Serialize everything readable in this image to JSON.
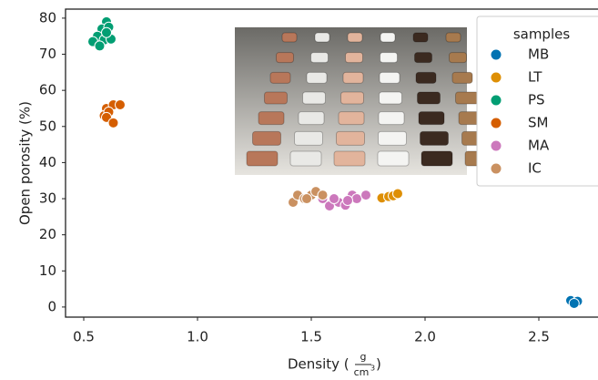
{
  "chart_data": {
    "type": "scatter",
    "xlabel": [
      "Density (",
      "g",
      "cm",
      "3",
      ")"
    ],
    "ylabel": "Open porosity (%)",
    "xlim": [
      0.42,
      2.76
    ],
    "ylim": [
      -2.8,
      82.5
    ],
    "xticks": [
      0.5,
      {
        "value": 1.0,
        "label": "1.0"
      },
      1.5,
      {
        "value": 2.0,
        "label": "2.0"
      },
      2.5
    ],
    "yticks": [
      0,
      10,
      20,
      30,
      40,
      50,
      60,
      70,
      80
    ],
    "legend_title": "samples",
    "legend": "upper right",
    "series": [
      {
        "name": "MB",
        "color": "#0173b2",
        "x": [
          2.64,
          2.67,
          2.655
        ],
        "values": [
          1.8,
          1.6,
          1.0
        ]
      },
      {
        "name": "LT",
        "color": "#de8f05",
        "x": [
          1.81,
          1.84,
          1.86,
          1.88
        ],
        "values": [
          30.2,
          30.6,
          30.8,
          31.4
        ]
      },
      {
        "name": "PS",
        "color": "#029e73",
        "x": [
          0.6,
          0.58,
          0.61,
          0.56,
          0.59,
          0.62,
          0.54,
          0.57,
          0.6
        ],
        "values": [
          79,
          77,
          77.5,
          75,
          74,
          74.2,
          73.5,
          72.3,
          76
        ]
      },
      {
        "name": "SM",
        "color": "#d55e00",
        "x": [
          0.6,
          0.63,
          0.66,
          0.59,
          0.61,
          0.6,
          0.63
        ],
        "values": [
          55,
          56,
          56,
          53,
          54,
          52.5,
          51
        ]
      },
      {
        "name": "MA",
        "color": "#cc78bc",
        "x": [
          1.55,
          1.58,
          1.62,
          1.65,
          1.68,
          1.7,
          1.74,
          1.6,
          1.66
        ],
        "values": [
          30,
          28,
          29,
          28.2,
          31,
          30,
          31,
          30,
          29.5
        ]
      },
      {
        "name": "IC",
        "color": "#ca9161",
        "x": [
          1.42,
          1.44,
          1.47,
          1.5,
          1.52,
          1.55,
          1.48
        ],
        "values": [
          29,
          31,
          30,
          31,
          32,
          31,
          30
        ]
      }
    ]
  }
}
